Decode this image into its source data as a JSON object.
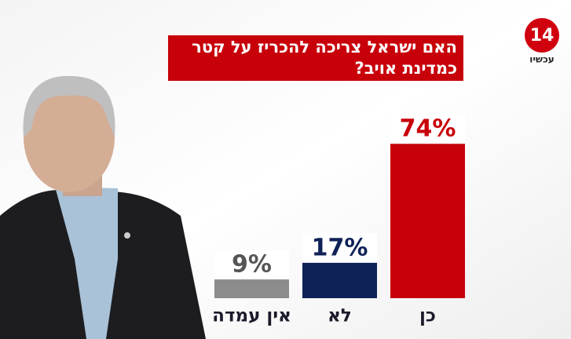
{
  "chart_data": {
    "type": "bar",
    "title": [
      "האם ישראל צריכה להכריז על קטר",
      "כמדינת אויב?"
    ],
    "categories": [
      "כן",
      "לא",
      "אין עמדה"
    ],
    "values": [
      74,
      17,
      9
    ],
    "value_labels": [
      "74%",
      "17%",
      "9%"
    ],
    "colors": [
      "#c8000a",
      "#0f2257",
      "#8c8c8c"
    ]
  },
  "logo": {
    "number": "14",
    "name": "עכשיו"
  }
}
